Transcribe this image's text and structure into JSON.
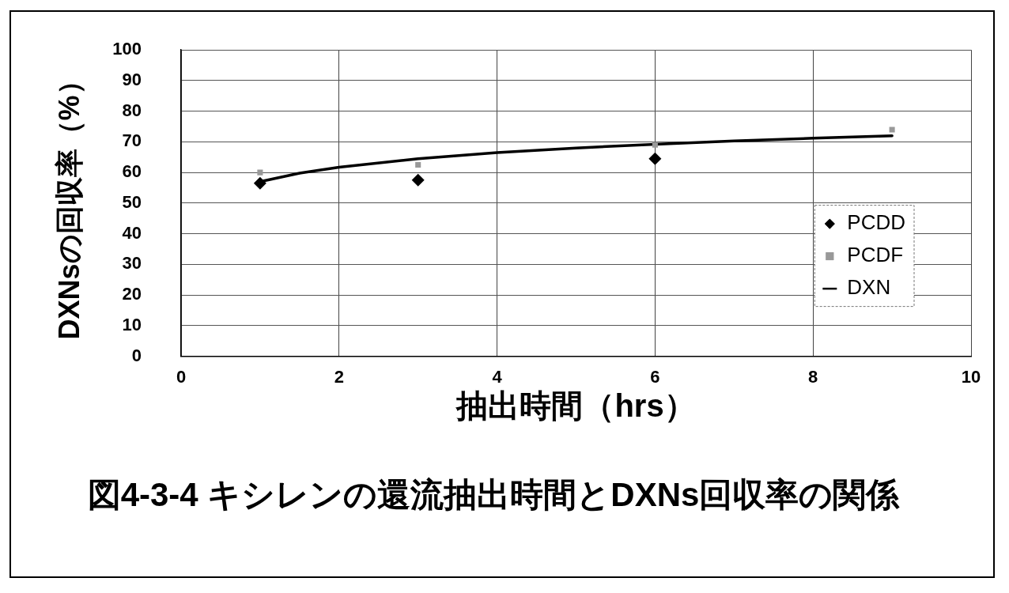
{
  "chart_data": {
    "type": "scatter",
    "title": "図4-3-4 キシレンの還流抽出時間とDXNs回収率の関係",
    "xlabel": "抽出時間（hrs）",
    "ylabel": "DXNsの回収率（%）",
    "xlim": [
      0,
      10
    ],
    "xticks": [
      0,
      2,
      4,
      6,
      8,
      10
    ],
    "ylim": [
      0,
      100
    ],
    "yticks": [
      0,
      10,
      20,
      30,
      40,
      50,
      60,
      70,
      80,
      90,
      100
    ],
    "grid": true,
    "legend": "right",
    "series": [
      {
        "name": "PCDD",
        "marker": "diamond",
        "color": "#000000",
        "x": [
          1,
          3,
          6
        ],
        "values": [
          56.5,
          57.5,
          64.5
        ]
      },
      {
        "name": "PCDF",
        "marker": "square",
        "color": "#999999",
        "x": [
          1,
          3,
          6,
          9
        ],
        "values": [
          60,
          62.5,
          69,
          74
        ]
      },
      {
        "name": "DXN",
        "type": "line",
        "marker": "none",
        "color": "#000000",
        "x": [
          1,
          1.5,
          2,
          3,
          4,
          5,
          6,
          7,
          8,
          9
        ],
        "values": [
          57,
          59.8,
          61.7,
          64.5,
          66.5,
          68,
          69.2,
          70.3,
          71.2,
          72
        ]
      }
    ]
  }
}
